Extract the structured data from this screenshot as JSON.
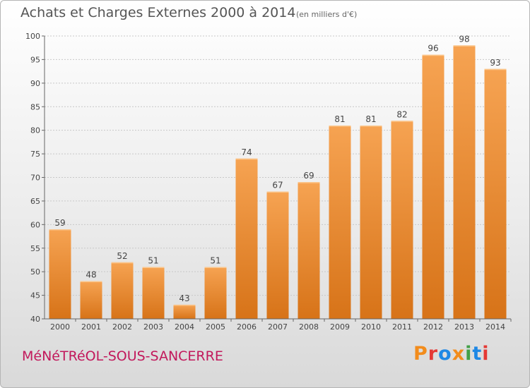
{
  "header": {
    "title": "Achats et Charges Externes 2000 à 2014",
    "unit_note": "(en milliers d'€)"
  },
  "footer": {
    "commune": "MéNéTRéOL-SOUS-SANCERRE",
    "brand": "Proxiti"
  },
  "colors": {
    "bar_top": "#f6a352",
    "bar_bottom": "#d77318",
    "commune_text": "#c2185b",
    "brand_letters": [
      "#f28c1c",
      "#e53935",
      "#1e88e5",
      "#f28c1c",
      "#43a047",
      "#1e88e5",
      "#e53935"
    ]
  },
  "chart_data": {
    "type": "bar",
    "title": "Achats et Charges Externes 2000 à 2014",
    "subtitle": "(en milliers d'€)",
    "xlabel": "",
    "ylabel": "",
    "categories": [
      "2000",
      "2001",
      "2002",
      "2003",
      "2004",
      "2005",
      "2006",
      "2007",
      "2008",
      "2009",
      "2010",
      "2011",
      "2012",
      "2013",
      "2014"
    ],
    "values": [
      59,
      48,
      52,
      51,
      43,
      51,
      74,
      67,
      69,
      81,
      81,
      82,
      96,
      98,
      93
    ],
    "ylim": [
      40,
      100
    ],
    "yticks": [
      40,
      45,
      50,
      55,
      60,
      65,
      70,
      75,
      80,
      85,
      90,
      95,
      100
    ],
    "grid": true,
    "legend": "none"
  }
}
